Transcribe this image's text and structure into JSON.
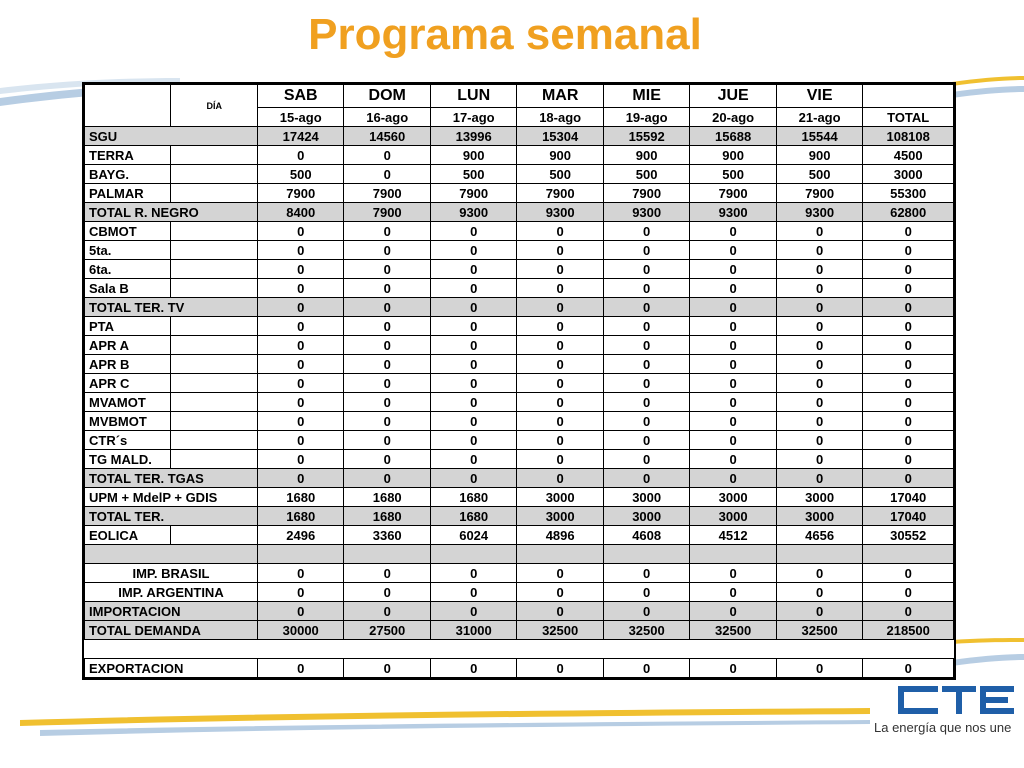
{
  "title": "Programa semanal",
  "header": {
    "dia_label": "DÍA",
    "total_label": "TOTAL",
    "days": [
      {
        "name": "SAB",
        "date": "15-ago"
      },
      {
        "name": "DOM",
        "date": "16-ago"
      },
      {
        "name": "LUN",
        "date": "17-ago"
      },
      {
        "name": "MAR",
        "date": "18-ago"
      },
      {
        "name": "MIE",
        "date": "19-ago"
      },
      {
        "name": "JUE",
        "date": "20-ago"
      },
      {
        "name": "VIE",
        "date": "21-ago"
      }
    ]
  },
  "rows": [
    {
      "label": "SGU",
      "values": [
        "17424",
        "14560",
        "13996",
        "15304",
        "15592",
        "15688",
        "15544"
      ],
      "total": "108108",
      "gray": true,
      "merged": true
    },
    {
      "label": "TERRA",
      "values": [
        "0",
        "0",
        "900",
        "900",
        "900",
        "900",
        "900"
      ],
      "total": "4500"
    },
    {
      "label": "BAYG.",
      "values": [
        "500",
        "0",
        "500",
        "500",
        "500",
        "500",
        "500"
      ],
      "total": "3000"
    },
    {
      "label": "PALMAR",
      "values": [
        "7900",
        "7900",
        "7900",
        "7900",
        "7900",
        "7900",
        "7900"
      ],
      "total": "55300"
    },
    {
      "label": "TOTAL R. NEGRO",
      "values": [
        "8400",
        "7900",
        "9300",
        "9300",
        "9300",
        "9300",
        "9300"
      ],
      "total": "62800",
      "gray": true,
      "merged": true
    },
    {
      "label": "CBMOT",
      "values": [
        "0",
        "0",
        "0",
        "0",
        "0",
        "0",
        "0"
      ],
      "total": "0"
    },
    {
      "label": "5ta.",
      "values": [
        "0",
        "0",
        "0",
        "0",
        "0",
        "0",
        "0"
      ],
      "total": "0"
    },
    {
      "label": "6ta.",
      "values": [
        "0",
        "0",
        "0",
        "0",
        "0",
        "0",
        "0"
      ],
      "total": "0"
    },
    {
      "label": "Sala B",
      "values": [
        "0",
        "0",
        "0",
        "0",
        "0",
        "0",
        "0"
      ],
      "total": "0"
    },
    {
      "label": "TOTAL TER. TV",
      "values": [
        "0",
        "0",
        "0",
        "0",
        "0",
        "0",
        "0"
      ],
      "total": "0",
      "gray": true,
      "merged": true
    },
    {
      "label": "PTA",
      "values": [
        "0",
        "0",
        "0",
        "0",
        "0",
        "0",
        "0"
      ],
      "total": "0"
    },
    {
      "label": "APR A",
      "values": [
        "0",
        "0",
        "0",
        "0",
        "0",
        "0",
        "0"
      ],
      "total": "0"
    },
    {
      "label": "APR B",
      "values": [
        "0",
        "0",
        "0",
        "0",
        "0",
        "0",
        "0"
      ],
      "total": "0"
    },
    {
      "label": "APR C",
      "values": [
        "0",
        "0",
        "0",
        "0",
        "0",
        "0",
        "0"
      ],
      "total": "0"
    },
    {
      "label": "MVAMOT",
      "values": [
        "0",
        "0",
        "0",
        "0",
        "0",
        "0",
        "0"
      ],
      "total": "0"
    },
    {
      "label": "MVBMOT",
      "values": [
        "0",
        "0",
        "0",
        "0",
        "0",
        "0",
        "0"
      ],
      "total": "0"
    },
    {
      "label": "CTR´s",
      "values": [
        "0",
        "0",
        "0",
        "0",
        "0",
        "0",
        "0"
      ],
      "total": "0"
    },
    {
      "label": "TG MALD.",
      "values": [
        "0",
        "0",
        "0",
        "0",
        "0",
        "0",
        "0"
      ],
      "total": "0"
    },
    {
      "label": "TOTAL TER. TGAS",
      "values": [
        "0",
        "0",
        "0",
        "0",
        "0",
        "0",
        "0"
      ],
      "total": "0",
      "gray": true,
      "merged": true
    },
    {
      "label": "UPM + MdelP + GDIS",
      "values": [
        "1680",
        "1680",
        "1680",
        "3000",
        "3000",
        "3000",
        "3000"
      ],
      "total": "17040",
      "merged": true
    },
    {
      "label": "TOTAL TER.",
      "values": [
        "1680",
        "1680",
        "1680",
        "3000",
        "3000",
        "3000",
        "3000"
      ],
      "total": "17040",
      "gray": true,
      "merged": true
    },
    {
      "label": "EOLICA",
      "values": [
        "2496",
        "3360",
        "6024",
        "4896",
        "4608",
        "4512",
        "4656"
      ],
      "total": "30552"
    },
    {
      "blank": true,
      "gray": true
    },
    {
      "label": "IMP. BRASIL",
      "values": [
        "0",
        "0",
        "0",
        "0",
        "0",
        "0",
        "0"
      ],
      "total": "0",
      "merged": true,
      "center": true
    },
    {
      "label": "IMP. ARGENTINA",
      "values": [
        "0",
        "0",
        "0",
        "0",
        "0",
        "0",
        "0"
      ],
      "total": "0",
      "merged": true,
      "center": true
    },
    {
      "label": "IMPORTACION",
      "values": [
        "0",
        "0",
        "0",
        "0",
        "0",
        "0",
        "0"
      ],
      "total": "0",
      "gray": true,
      "merged": true
    },
    {
      "label": "TOTAL DEMANDA",
      "values": [
        "30000",
        "27500",
        "31000",
        "32500",
        "32500",
        "32500",
        "32500"
      ],
      "total": "218500",
      "gray": true,
      "merged": true
    },
    {
      "blank": true
    },
    {
      "label": "EXPORTACION",
      "values": [
        "0",
        "0",
        "0",
        "0",
        "0",
        "0",
        "0"
      ],
      "total": "0",
      "merged": true
    }
  ],
  "logo": {
    "text": "CTE",
    "slogan": "La energía que nos une",
    "color": "#1f5fa8"
  },
  "colors": {
    "title": "#f0a020",
    "accent_blue": "#9bbbd9",
    "accent_yellow": "#f0c030",
    "gray_row": "#d4d4d4"
  }
}
